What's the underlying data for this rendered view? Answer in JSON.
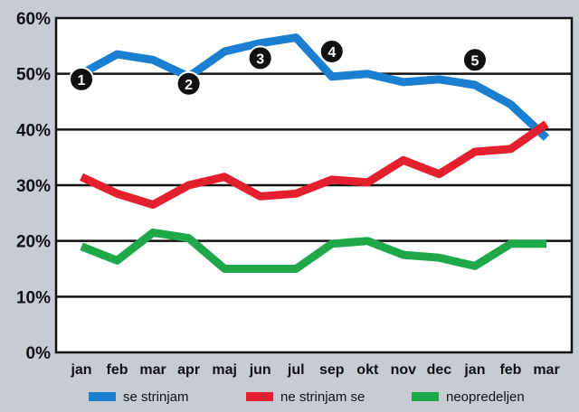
{
  "chart_data": {
    "type": "line",
    "title": "",
    "xlabel": "",
    "ylabel": "",
    "ylim": [
      0,
      60
    ],
    "yticks": [
      0,
      10,
      20,
      30,
      40,
      50,
      60
    ],
    "ytick_labels": [
      "0%",
      "10%",
      "20%",
      "30%",
      "40%",
      "50%",
      "60%"
    ],
    "grid": true,
    "legend_position": "bottom",
    "categories": [
      "jan",
      "feb",
      "mar",
      "apr",
      "maj",
      "jun",
      "jul",
      "sep",
      "okt",
      "nov",
      "dec",
      "jan",
      "feb",
      "mar"
    ],
    "series": [
      {
        "name": "se strinjam",
        "color": "#1a7fd0",
        "values": [
          50,
          53.5,
          52.5,
          49.5,
          54,
          55.5,
          56.5,
          49.5,
          50,
          48.5,
          49,
          48,
          44.5,
          38.5
        ]
      },
      {
        "name": "ne strinjam se",
        "color": "#e4202f",
        "values": [
          31.5,
          28.5,
          26.5,
          30,
          31.5,
          28,
          28.5,
          31,
          30.5,
          34.5,
          32,
          36,
          36.5,
          41
        ]
      },
      {
        "name": "neopredeljen",
        "color": "#1fa84a",
        "values": [
          19,
          16.5,
          21.5,
          20.5,
          15,
          15,
          15,
          19.5,
          20,
          17.5,
          17,
          15.5,
          19.5,
          19.5
        ]
      }
    ],
    "annotations": [
      {
        "label": "1",
        "index": 0,
        "value": 49
      },
      {
        "label": "2",
        "index": 3,
        "value": 48.2
      },
      {
        "label": "3",
        "index": 5,
        "value": 52.8
      },
      {
        "label": "4",
        "index": 7,
        "value": 54
      },
      {
        "label": "5",
        "index": 11,
        "value": 52.5
      }
    ]
  }
}
